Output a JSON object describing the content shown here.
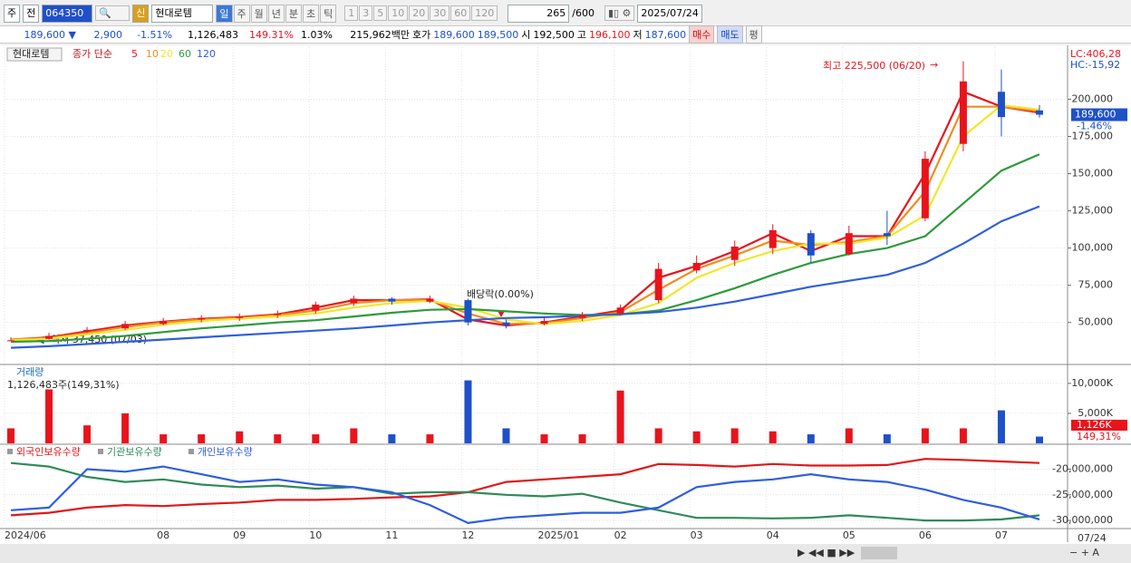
{
  "toolbar": {
    "market": "주",
    "prev": "전",
    "code": "064350",
    "credit": "신",
    "name": "현대로템",
    "periods": [
      "일",
      "주",
      "월",
      "년",
      "분",
      "초",
      "틱"
    ],
    "intervals": [
      "1",
      "3",
      "5",
      "10",
      "20",
      "30",
      "60",
      "120"
    ],
    "count": "265",
    "max": "/600",
    "date": "2025/07/24"
  },
  "quote": {
    "price": "189,600 ▼",
    "change": "2,900",
    "rate": "-1.51%",
    "volume": "1,126,483",
    "volume_rate": "149.31%",
    "turnover": "1.03%",
    "amount": "215,962백만",
    "ask_label": "호가",
    "ask": "189,600",
    "bid": "189,500",
    "open_label": "시",
    "open": "192,500",
    "high_label": "고",
    "high": "196,100",
    "low_label": "저",
    "low": "187,600",
    "buy": "매수",
    "sell": "매도",
    "avg": "평"
  },
  "chart_data": [
    {
      "type": "candlestick",
      "name": "현대로템",
      "price_label": "종가 단순",
      "up_color": "#e8141c",
      "down_color": "#1e50c8",
      "open": [
        37500,
        39000,
        44000,
        46000,
        49000,
        52000,
        53000,
        55000,
        58000,
        63000,
        66000,
        64000,
        65000,
        50000,
        49000,
        53000,
        56000,
        65000,
        85000,
        92000,
        100000,
        110000,
        96000,
        110000,
        120000,
        170000,
        205000,
        192500
      ],
      "high": [
        40000,
        43000,
        47000,
        51000,
        53000,
        55000,
        56000,
        58000,
        64000,
        68000,
        67000,
        68000,
        66000,
        52000,
        53000,
        57000,
        62000,
        90000,
        95000,
        105000,
        116000,
        112000,
        115000,
        125000,
        165000,
        225500,
        220000,
        196100
      ],
      "low": [
        37450,
        38500,
        43000,
        45000,
        48000,
        50000,
        51000,
        53000,
        56000,
        61000,
        62000,
        63000,
        48000,
        46000,
        48000,
        51000,
        55000,
        63000,
        83000,
        88000,
        96000,
        90000,
        95000,
        102000,
        118000,
        165000,
        175000,
        187600
      ],
      "close": [
        38000,
        41000,
        45000,
        49000,
        51000,
        53000,
        54000,
        56000,
        62000,
        66000,
        64000,
        66000,
        50000,
        48000,
        51000,
        55000,
        60000,
        86000,
        90000,
        101000,
        112000,
        95000,
        110000,
        108000,
        160000,
        212000,
        188000,
        189600
      ],
      "series": [
        {
          "name": "5",
          "color": "#e8141c",
          "values": [
            38500,
            40000,
            44000,
            48000,
            50500,
            52500,
            53500,
            55500,
            60000,
            65000,
            65000,
            65500,
            52000,
            48000,
            50000,
            54000,
            58000,
            80000,
            88000,
            98000,
            110000,
            98000,
            108000,
            108000,
            150000,
            205000,
            195000,
            191000
          ]
        },
        {
          "name": "10",
          "color": "#f08c20",
          "values": [
            38500,
            39500,
            43000,
            47000,
            50000,
            52000,
            53000,
            55000,
            58000,
            63000,
            65000,
            65000,
            56000,
            49000,
            49500,
            53000,
            57000,
            72000,
            86000,
            95000,
            105000,
            102000,
            104000,
            108000,
            138000,
            195000,
            195000,
            192000
          ]
        },
        {
          "name": "20",
          "color": "#f2e62a",
          "values": [
            38000,
            39000,
            42000,
            45000,
            48500,
            51000,
            52500,
            54000,
            56000,
            60000,
            63000,
            64500,
            60000,
            52000,
            49000,
            51000,
            55000,
            63000,
            80000,
            90000,
            98000,
            103000,
            103000,
            107000,
            122000,
            175000,
            196000,
            193000
          ]
        },
        {
          "name": "60",
          "color": "#2e9a3a",
          "values": [
            37000,
            37500,
            39000,
            41000,
            43500,
            46000,
            48000,
            50000,
            51500,
            54000,
            56500,
            58500,
            59000,
            57500,
            56000,
            55000,
            55500,
            58000,
            65000,
            73000,
            82000,
            90000,
            96000,
            100000,
            108000,
            130000,
            152000,
            163000
          ]
        },
        {
          "name": "120",
          "color": "#3060d8",
          "values": [
            33000,
            34000,
            35500,
            37000,
            38500,
            40000,
            41500,
            43000,
            44500,
            46000,
            48000,
            50000,
            51500,
            53000,
            53500,
            54500,
            55500,
            57000,
            60000,
            64000,
            69000,
            74000,
            78000,
            82000,
            90000,
            103000,
            118000,
            128000
          ]
        }
      ],
      "ylim": [
        23000,
        235000
      ],
      "yticks": [
        {
          "value": 50000,
          "label": "50,000"
        },
        {
          "value": 75000,
          "label": "75,000"
        },
        {
          "value": 100000,
          "label": "100,000"
        },
        {
          "value": 125000,
          "label": "125,000"
        },
        {
          "value": 150000,
          "label": "150,000"
        },
        {
          "value": 175000,
          "label": "175,000"
        },
        {
          "value": 200000,
          "label": "200,000"
        }
      ],
      "annotations": {
        "high": "최고 225,500 (06/20)",
        "low": "최저 37,450 (07/03)",
        "dividend": "배당락(0.00%)"
      },
      "lc": "LC:406,28",
      "hc": "HC:-15,92",
      "last_price": "189,600",
      "last_change": "-1.46%"
    },
    {
      "type": "bar",
      "title": "거래량",
      "subtitle": "1,126,483주(149,31%)",
      "values": [
        2500000,
        9000000,
        3000000,
        5000000,
        1500000,
        1500000,
        2000000,
        1500000,
        1500000,
        2500000,
        1500000,
        1500000,
        10500000,
        2500000,
        1500000,
        1500000,
        8800000,
        2500000,
        2000000,
        2500000,
        2000000,
        1500000,
        2500000,
        1500000,
        2500000,
        2500000,
        5500000,
        1126483
      ],
      "ylim": [
        0,
        12700000
      ],
      "yticks": [
        {
          "value": 5000000,
          "label": "5,000K"
        },
        {
          "value": 10000000,
          "label": "10,000K"
        }
      ],
      "last_label": "1,126K",
      "last_rate": "149,31%"
    },
    {
      "type": "line",
      "categories": [
        "2024/06",
        null,
        null,
        null,
        "08",
        null,
        "09",
        null,
        "10",
        null,
        "11",
        null,
        "12",
        null,
        "2025/01",
        null,
        "02",
        null,
        "03",
        null,
        "04",
        null,
        "05",
        null,
        "06",
        null,
        "07",
        null
      ],
      "end_label": "07/24",
      "series": [
        {
          "name": "외국인보유수량",
          "color": "#e01818",
          "values": [
            -29000000,
            -28500000,
            -27500000,
            -27000000,
            -27200000,
            -26800000,
            -26500000,
            -26000000,
            -26000000,
            -25800000,
            -25500000,
            -25300000,
            -24500000,
            -22500000,
            -22000000,
            -21500000,
            -21000000,
            -19000000,
            -19200000,
            -19500000,
            -19000000,
            -19300000,
            -19300000,
            -19200000,
            -18000000,
            -18200000,
            -18500000,
            -18800000
          ]
        },
        {
          "name": "기관보유수량",
          "color": "#2e8a5a",
          "values": [
            -18800000,
            -19500000,
            -21500000,
            -22500000,
            -22000000,
            -23000000,
            -23500000,
            -23200000,
            -23800000,
            -23500000,
            -24800000,
            -24500000,
            -24500000,
            -25000000,
            -25300000,
            -24800000,
            -26500000,
            -28000000,
            -29500000,
            -29500000,
            -29600000,
            -29500000,
            -29000000,
            -29500000,
            -30000000,
            -30000000,
            -29800000,
            -29000000
          ]
        },
        {
          "name": "개인보유수량",
          "color": "#2e5ee0",
          "values": [
            -28000000,
            -27500000,
            -20000000,
            -20500000,
            -19500000,
            -21000000,
            -22500000,
            -22000000,
            -23000000,
            -23500000,
            -24500000,
            -27000000,
            -30500000,
            -29500000,
            -29000000,
            -28500000,
            -28500000,
            -27500000,
            -23500000,
            -22500000,
            -22000000,
            -21000000,
            -22000000,
            -22500000,
            -24000000,
            -26000000,
            -27500000,
            -29800000
          ]
        }
      ],
      "ylim": [
        -31400000,
        -15500000
      ],
      "yticks": [
        {
          "value": -30000000,
          "label": "-30,000,000"
        },
        {
          "value": -25000000,
          "label": "-25,000,000"
        },
        {
          "value": -20000000,
          "label": "-20,000,000"
        }
      ]
    }
  ]
}
